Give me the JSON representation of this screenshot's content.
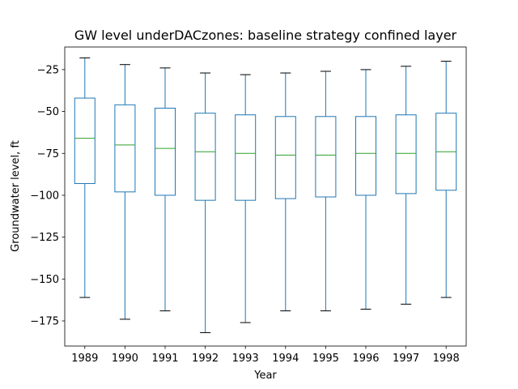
{
  "chart_data": {
    "type": "box",
    "title": "GW level underDACzones: baseline strategy confined layer",
    "xlabel": "Year",
    "ylabel": "Groundwater level, ft",
    "ylim": [
      -190,
      -11.5
    ],
    "yticks": [
      -25,
      -50,
      -75,
      -100,
      -125,
      -150,
      -175
    ],
    "grid": false,
    "colors": {
      "box": "#1f77b4",
      "median": "#2ca02c",
      "cap": "#000000",
      "axes": "#000000"
    },
    "categories": [
      "1989",
      "1990",
      "1991",
      "1992",
      "1993",
      "1994",
      "1995",
      "1996",
      "1997",
      "1998"
    ],
    "boxes": [
      {
        "label": "1989",
        "whisker_low": -161,
        "q1": -93,
        "median": -66,
        "q3": -42,
        "whisker_high": -18
      },
      {
        "label": "1990",
        "whisker_low": -174,
        "q1": -98,
        "median": -70,
        "q3": -46,
        "whisker_high": -22
      },
      {
        "label": "1991",
        "whisker_low": -169,
        "q1": -100,
        "median": -72,
        "q3": -48,
        "whisker_high": -24
      },
      {
        "label": "1992",
        "whisker_low": -182,
        "q1": -103,
        "median": -74,
        "q3": -51,
        "whisker_high": -27
      },
      {
        "label": "1993",
        "whisker_low": -176,
        "q1": -103,
        "median": -75,
        "q3": -52,
        "whisker_high": -28
      },
      {
        "label": "1994",
        "whisker_low": -169,
        "q1": -102,
        "median": -76,
        "q3": -53,
        "whisker_high": -27
      },
      {
        "label": "1995",
        "whisker_low": -169,
        "q1": -101,
        "median": -76,
        "q3": -53,
        "whisker_high": -26
      },
      {
        "label": "1996",
        "whisker_low": -168,
        "q1": -100,
        "median": -75,
        "q3": -53,
        "whisker_high": -25
      },
      {
        "label": "1997",
        "whisker_low": -165,
        "q1": -99,
        "median": -75,
        "q3": -52,
        "whisker_high": -23
      },
      {
        "label": "1998",
        "whisker_low": -161,
        "q1": -97,
        "median": -74,
        "q3": -51,
        "whisker_high": -20
      }
    ]
  }
}
